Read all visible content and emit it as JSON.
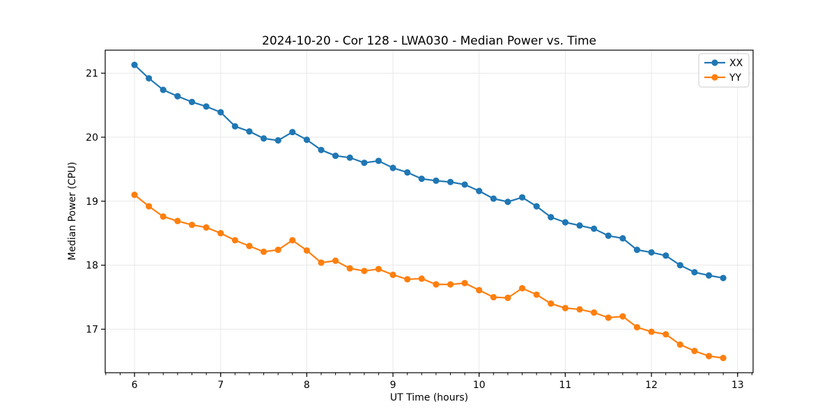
{
  "chart_data": {
    "type": "line",
    "title": "2024-10-20 - Cor 128 - LWA030 - Median Power vs. Time",
    "xlabel": "UT Time (hours)",
    "ylabel": "Median Power (CPU)",
    "xlim": [
      5.66,
      13.18
    ],
    "ylim": [
      16.32,
      21.36
    ],
    "xticks": [
      6,
      7,
      8,
      9,
      10,
      11,
      12,
      13
    ],
    "yticks": [
      17,
      18,
      19,
      20,
      21
    ],
    "minor_tick_step_x": 0.166667,
    "grid": true,
    "grid_color": "#e8e8e8",
    "spine_color": "#000000",
    "legend_position": "upper right",
    "x": [
      6.0,
      6.167,
      6.333,
      6.5,
      6.667,
      6.833,
      7.0,
      7.167,
      7.333,
      7.5,
      7.667,
      7.833,
      8.0,
      8.167,
      8.333,
      8.5,
      8.667,
      8.833,
      9.0,
      9.167,
      9.333,
      9.5,
      9.667,
      9.833,
      10.0,
      10.167,
      10.333,
      10.5,
      10.667,
      10.833,
      11.0,
      11.167,
      11.333,
      11.5,
      11.667,
      11.833,
      12.0,
      12.167,
      12.333,
      12.5,
      12.667,
      12.833
    ],
    "series": [
      {
        "name": "XX",
        "color": "#1f77b4",
        "values": [
          21.13,
          20.92,
          20.74,
          20.64,
          20.55,
          20.48,
          20.39,
          20.17,
          20.09,
          19.98,
          19.95,
          20.08,
          19.96,
          19.8,
          19.71,
          19.68,
          19.6,
          19.63,
          19.52,
          19.45,
          19.35,
          19.32,
          19.3,
          19.26,
          19.16,
          19.04,
          18.99,
          19.06,
          18.92,
          18.75,
          18.67,
          18.62,
          18.57,
          18.46,
          18.42,
          18.24,
          18.2,
          18.15,
          18.0,
          17.89,
          17.84,
          17.8
        ]
      },
      {
        "name": "YY",
        "color": "#ff7f0e",
        "values": [
          19.1,
          18.92,
          18.76,
          18.69,
          18.63,
          18.59,
          18.5,
          18.39,
          18.3,
          18.21,
          18.24,
          18.39,
          18.23,
          18.04,
          18.07,
          17.95,
          17.91,
          17.94,
          17.85,
          17.78,
          17.79,
          17.7,
          17.7,
          17.72,
          17.61,
          17.5,
          17.49,
          17.64,
          17.54,
          17.4,
          17.33,
          17.31,
          17.26,
          17.18,
          17.2,
          17.03,
          16.96,
          16.92,
          16.76,
          16.66,
          16.58,
          16.55
        ]
      }
    ]
  }
}
